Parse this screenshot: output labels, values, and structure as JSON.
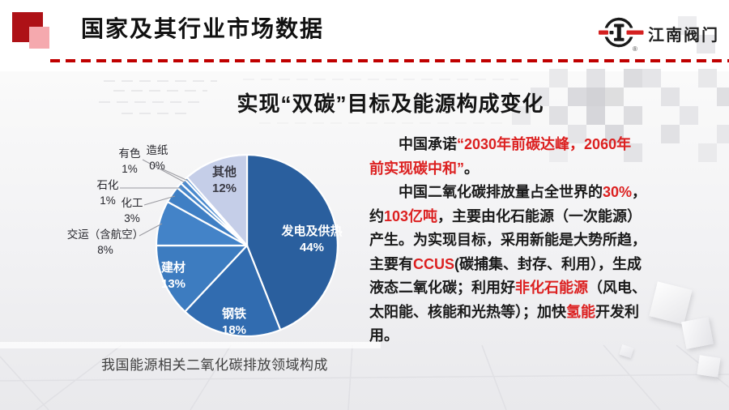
{
  "header": {
    "title": "国家及其行业市场数据",
    "logo_text": "江南阀门",
    "registered": "®"
  },
  "slide": {
    "title": "实现“双碳”目标及能源构成变化",
    "caption": "我国能源相关二氧化碳排放领域构成"
  },
  "chart_data": {
    "type": "pie",
    "title": "我国能源相关二氧化碳排放领域构成",
    "start_angle_deg": 0,
    "clockwise": true,
    "slices": [
      {
        "label": "发电及供热",
        "pct": "44%",
        "value": 44,
        "color": "#2a5f9e"
      },
      {
        "label": "钢铁",
        "pct": "18%",
        "value": 18,
        "color": "#316cb0"
      },
      {
        "label": "建材",
        "pct": "13%",
        "value": 13,
        "color": "#3d7cc0"
      },
      {
        "label": "交运（含航空）",
        "pct": "8%",
        "value": 8,
        "color": "#4383c8"
      },
      {
        "label": "化工",
        "pct": "3%",
        "value": 3,
        "color": "#3f7fc4"
      },
      {
        "label": "石化",
        "pct": "1%",
        "value": 1,
        "color": "#4787cb"
      },
      {
        "label": "有色",
        "pct": "1%",
        "value": 1,
        "color": "#4b8ace"
      },
      {
        "label": "造纸",
        "pct": "0%",
        "value": 0.5,
        "color": "#508ed2"
      },
      {
        "label": "其他",
        "pct": "12%",
        "value": 11.5,
        "color": "#c5cee8"
      }
    ]
  },
  "paragraph": {
    "red_hex": "#dc2020",
    "lines": [
      {
        "indent": true,
        "segments": [
          {
            "t": "中国承诺",
            "c": "k"
          },
          {
            "t": "“2030年前碳达峰，2060年",
            "c": "r"
          }
        ]
      },
      {
        "indent": false,
        "segments": [
          {
            "t": "前实现碳中和”",
            "c": "r"
          },
          {
            "t": "。",
            "c": "k"
          }
        ]
      },
      {
        "indent": true,
        "segments": [
          {
            "t": "中国二氧化碳排放量占全世界的",
            "c": "k"
          },
          {
            "t": "30%",
            "c": "r"
          },
          {
            "t": "，",
            "c": "k"
          }
        ]
      },
      {
        "indent": false,
        "segments": [
          {
            "t": "约",
            "c": "k"
          },
          {
            "t": "103亿吨",
            "c": "r"
          },
          {
            "t": "，主要由化石能源（一次能源）",
            "c": "k"
          }
        ]
      },
      {
        "indent": false,
        "segments": [
          {
            "t": "产生。为实现目标，采用新能是大势所趋，",
            "c": "k"
          }
        ]
      },
      {
        "indent": false,
        "segments": [
          {
            "t": "主要有",
            "c": "k"
          },
          {
            "t": "CCUS",
            "c": "r"
          },
          {
            "t": "(碳捕集、封存、利用），生成",
            "c": "k"
          }
        ]
      },
      {
        "indent": false,
        "segments": [
          {
            "t": "液态二氧化碳；利用好",
            "c": "k"
          },
          {
            "t": "非化石能源",
            "c": "r"
          },
          {
            "t": "（风电、",
            "c": "k"
          }
        ]
      },
      {
        "indent": false,
        "segments": [
          {
            "t": "太阳能、核能和光热等）；加快",
            "c": "k"
          },
          {
            "t": "氢能",
            "c": "r"
          },
          {
            "t": "开发利",
            "c": "k"
          }
        ]
      },
      {
        "indent": false,
        "segments": [
          {
            "t": "用。",
            "c": "k"
          }
        ]
      }
    ]
  }
}
